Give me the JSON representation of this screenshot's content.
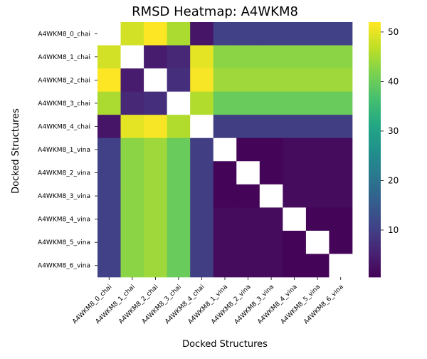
{
  "chart_data": {
    "type": "heatmap",
    "title": "RMSD Heatmap: A4WKM8",
    "xlabel": "Docked Structures",
    "ylabel": "Docked Structures",
    "labels": [
      "A4WKM8_0_chai",
      "A4WKM8_1_chai",
      "A4WKM8_2_chai",
      "A4WKM8_3_chai",
      "A4WKM8_4_chai",
      "A4WKM8_1_vina",
      "A4WKM8_2_vina",
      "A4WKM8_3_vina",
      "A4WKM8_4_vina",
      "A4WKM8_5_vina",
      "A4WKM8_6_vina"
    ],
    "matrix": [
      [
        null,
        48.5,
        52.0,
        45.5,
        3.5,
        10.5,
        10.5,
        10.5,
        10.5,
        10.5,
        10.5
      ],
      [
        48.5,
        null,
        4.5,
        6.5,
        50.0,
        43.0,
        43.0,
        43.0,
        43.0,
        43.0,
        43.0
      ],
      [
        52.0,
        4.5,
        null,
        7.5,
        51.5,
        44.5,
        44.5,
        44.5,
        44.5,
        44.5,
        44.5
      ],
      [
        45.5,
        6.5,
        7.5,
        null,
        46.0,
        40.0,
        40.0,
        40.0,
        40.0,
        40.0,
        40.0
      ],
      [
        3.5,
        50.0,
        51.5,
        46.0,
        null,
        10.0,
        10.0,
        10.0,
        10.0,
        10.0,
        10.0
      ],
      [
        10.5,
        43.0,
        44.5,
        40.0,
        10.0,
        null,
        1.0,
        1.0,
        2.0,
        2.0,
        2.0
      ],
      [
        10.5,
        43.0,
        44.5,
        40.0,
        10.0,
        1.0,
        null,
        1.0,
        2.0,
        2.0,
        2.0
      ],
      [
        10.5,
        43.0,
        44.5,
        40.0,
        10.0,
        1.0,
        1.0,
        null,
        2.0,
        2.0,
        2.0
      ],
      [
        10.5,
        43.0,
        44.5,
        40.0,
        10.0,
        2.0,
        2.0,
        2.0,
        null,
        1.0,
        1.0
      ],
      [
        10.5,
        43.0,
        44.5,
        40.0,
        10.0,
        2.0,
        2.0,
        2.0,
        1.0,
        null,
        1.0
      ],
      [
        10.5,
        43.0,
        44.5,
        40.0,
        10.0,
        2.0,
        2.0,
        2.0,
        1.0,
        1.0,
        null
      ]
    ],
    "color_range": [
      0.5,
      52.0
    ],
    "colorbar_ticks": [
      10,
      20,
      30,
      40,
      50
    ],
    "colormap": "viridis",
    "diagonal_color": "#ffffff",
    "grid": false,
    "legend": "colorbar-right"
  }
}
